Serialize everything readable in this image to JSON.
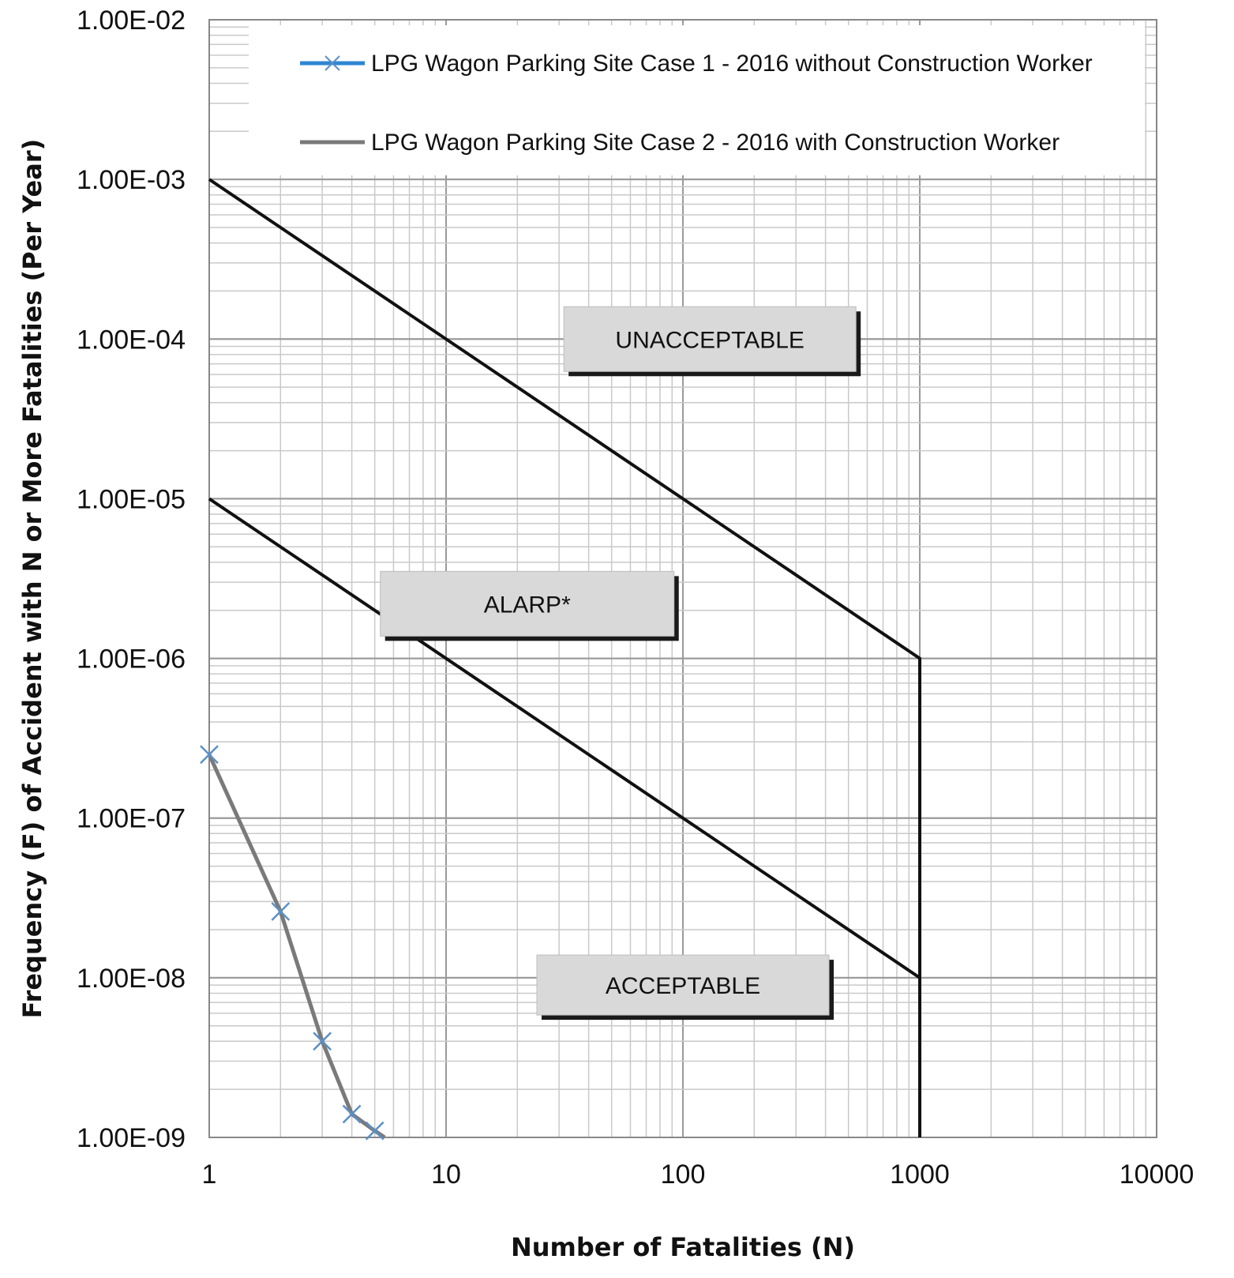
{
  "chart_data": {
    "type": "line",
    "title": "",
    "xlabel": "Number of Fatalities (N)",
    "ylabel": "Frequency (F) of Accident with N or More Fatalities (Per Year)",
    "xscale": "log",
    "yscale": "log",
    "xlim": [
      1,
      10000
    ],
    "ylim": [
      1e-09,
      0.01
    ],
    "grid": true,
    "legend_position": "top",
    "x_tick_labels": [
      "1",
      "10",
      "100",
      "1000",
      "10000"
    ],
    "x_tick_values": [
      1,
      10,
      100,
      1000,
      10000
    ],
    "y_tick_labels": [
      "1.00E-09",
      "1.00E-08",
      "1.00E-07",
      "1.00E-06",
      "1.00E-05",
      "1.00E-04",
      "1.00E-03",
      "1.00E-02"
    ],
    "y_tick_values": [
      1e-09,
      1e-08,
      1e-07,
      1e-06,
      1e-05,
      0.0001,
      0.001,
      0.01
    ],
    "series": [
      {
        "name": "LPG Wagon Parking Site Case 1 - 2016 without Construction Worker",
        "color": "#2e86d1",
        "marker": "x",
        "x": [
          1,
          2,
          3,
          4,
          5
        ],
        "y": [
          2.5e-07,
          2.6e-08,
          4e-09,
          1.4e-09,
          1.1e-09
        ]
      },
      {
        "name": "LPG Wagon Parking Site Case 2 - 2016 with Construction Worker",
        "color": "#7a7a7a",
        "marker": "none",
        "x": [
          1,
          2,
          3,
          4,
          5,
          5.5
        ],
        "y": [
          2.5e-07,
          2.6e-08,
          4e-09,
          1.4e-09,
          1.1e-09,
          1e-09
        ]
      }
    ],
    "criteria_lines": [
      {
        "label": "upper",
        "color": "#111111",
        "x": [
          1,
          1000,
          1000
        ],
        "y": [
          0.001,
          1e-06,
          1e-09
        ]
      },
      {
        "label": "lower",
        "color": "#111111",
        "x": [
          1,
          1000
        ],
        "y": [
          1e-05,
          1e-08
        ]
      }
    ],
    "zones": [
      {
        "text": "UNACCEPTABLE",
        "x": 130,
        "y": 0.0001
      },
      {
        "text": "ALARP*",
        "x": 22,
        "y": 2.2e-06
      },
      {
        "text": "ACCEPTABLE",
        "x": 100,
        "y": 9e-09
      }
    ]
  }
}
